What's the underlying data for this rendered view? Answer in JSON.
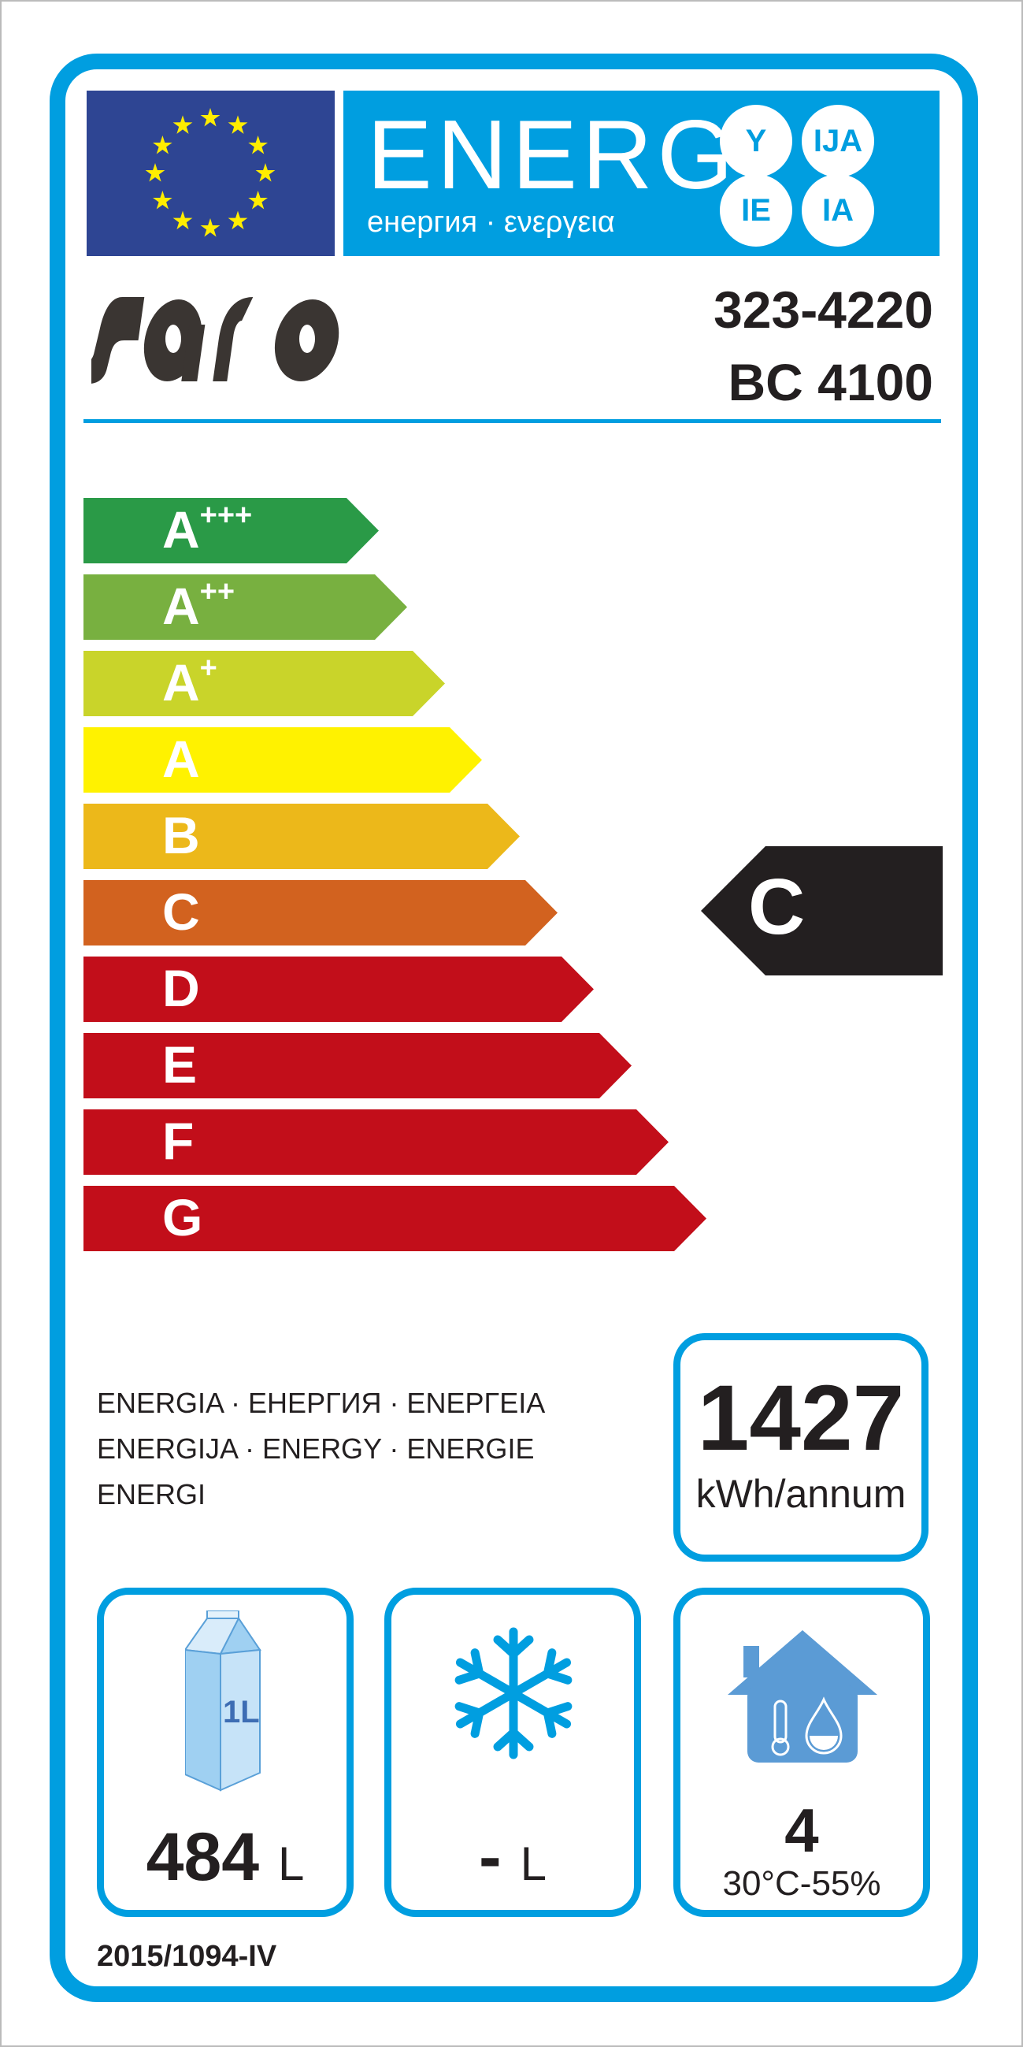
{
  "header": {
    "title": "ENERG",
    "subtitle": "енергия · ενεργεια",
    "suffixes": [
      "Y",
      "IJA",
      "IE",
      "IA"
    ]
  },
  "brand": {
    "logo_text": "saro"
  },
  "model": {
    "article_number": "323-4220",
    "model_name": "BC 4100"
  },
  "scale": {
    "classes": [
      {
        "label": "A",
        "sup": "+++",
        "color": "#2a9a47"
      },
      {
        "label": "A",
        "sup": "++",
        "color": "#78b040"
      },
      {
        "label": "A",
        "sup": "+",
        "color": "#c9d42a"
      },
      {
        "label": "A",
        "sup": "",
        "color": "#fff200"
      },
      {
        "label": "B",
        "sup": "",
        "color": "#ecb81a"
      },
      {
        "label": "C",
        "sup": "",
        "color": "#d2621f"
      },
      {
        "label": "D",
        "sup": "",
        "color": "#c20e1a"
      },
      {
        "label": "E",
        "sup": "",
        "color": "#c20e1a"
      },
      {
        "label": "F",
        "sup": "",
        "color": "#c20e1a"
      },
      {
        "label": "G",
        "sup": "",
        "color": "#c20e1a"
      }
    ],
    "rating": "C",
    "rating_color": "#231f20"
  },
  "energy_words": [
    "ENERGIA · ЕНЕРГИЯ · ΕΝΕΡΓΕΙΑ",
    "ENERGIJA · ENERGY · ENERGIE",
    "ENERGI"
  ],
  "consumption": {
    "value": "1427",
    "unit": "kWh/annum"
  },
  "storage": {
    "icon": "milk-carton-icon",
    "carton_label": "1L",
    "value": "484",
    "unit": "L"
  },
  "freezer": {
    "icon": "snowflake-icon",
    "value": "-",
    "unit": "L"
  },
  "climate": {
    "icon": "house-thermometer-drop-icon",
    "class": "4",
    "conditions": "30°C-55%"
  },
  "regulation": "2015/1094-IV",
  "colors": {
    "accent": "#009ee0",
    "flag": "#2e4593",
    "stars": "#ffed00",
    "text": "#231f20"
  }
}
